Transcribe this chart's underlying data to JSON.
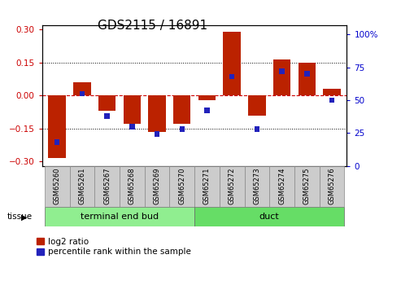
{
  "title": "GDS2115 / 16891",
  "samples": [
    "GSM65260",
    "GSM65261",
    "GSM65267",
    "GSM65268",
    "GSM65269",
    "GSM65270",
    "GSM65271",
    "GSM65272",
    "GSM65273",
    "GSM65274",
    "GSM65275",
    "GSM65276"
  ],
  "log2_ratio": [
    -0.285,
    0.06,
    -0.07,
    -0.13,
    -0.165,
    -0.13,
    -0.02,
    0.29,
    -0.09,
    0.165,
    0.15,
    0.03
  ],
  "percentile": [
    18,
    55,
    38,
    30,
    24,
    28,
    42,
    68,
    28,
    72,
    70,
    50
  ],
  "tissue_groups": [
    {
      "label": "terminal end bud",
      "start": 0,
      "end": 6,
      "color": "#90EE90"
    },
    {
      "label": "duct",
      "start": 6,
      "end": 12,
      "color": "#66DD66"
    }
  ],
  "bar_width": 0.7,
  "log2_color": "#BB2200",
  "percentile_color": "#2222BB",
  "zero_line_color": "#CC0000",
  "ylim_left": [
    -0.32,
    0.32
  ],
  "ylim_right": [
    0,
    107
  ],
  "yticks_left": [
    -0.3,
    -0.15,
    0,
    0.15,
    0.3
  ],
  "yticks_right": [
    0,
    25,
    50,
    75,
    100
  ],
  "bg_color": "#FFFFFF",
  "tick_label_color_left": "#CC0000",
  "tick_label_color_right": "#0000CC",
  "title_fontsize": 11,
  "legend_fontsize": 7.5,
  "sample_fontsize": 6,
  "tissue_fontsize": 8
}
